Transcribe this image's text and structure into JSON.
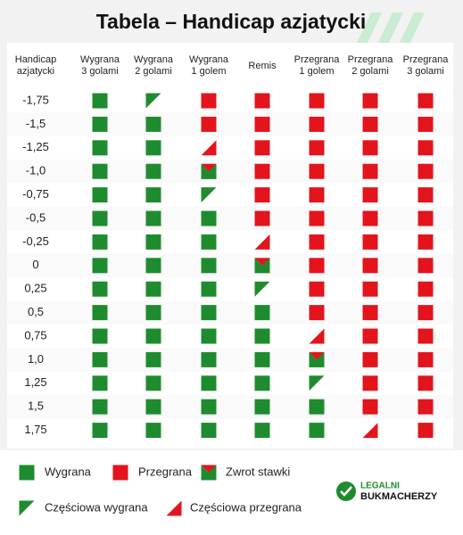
{
  "title": "Tabela – Handicap azjatycki",
  "columns": [
    [
      "Handicap",
      "azjatycki"
    ],
    [
      "Wygrana",
      "3 golami"
    ],
    [
      "Wygrana",
      "2 golami"
    ],
    [
      "Wygrana",
      "1 golem"
    ],
    [
      "Remis"
    ],
    [
      "Przegrana",
      "1 golem"
    ],
    [
      "Przegrana",
      "2 golami"
    ],
    [
      "Przegrana",
      "3 golami"
    ]
  ],
  "rows": [
    "-1,75",
    "-1,5",
    "-1,25",
    "-1,0",
    "-0,75",
    "-0,5",
    "-0,25",
    "0",
    "0,25",
    "0,5",
    "0,75",
    "1,0",
    "1,25",
    "1,5",
    "1,75"
  ],
  "legend": [
    "Wygrana",
    "Przegrana",
    "Zwrot stawki",
    "Częściowa wygrana",
    "Częściowa przegrana"
  ],
  "logo": [
    "LEGALNI",
    "BUKMACHERZY"
  ]
}
